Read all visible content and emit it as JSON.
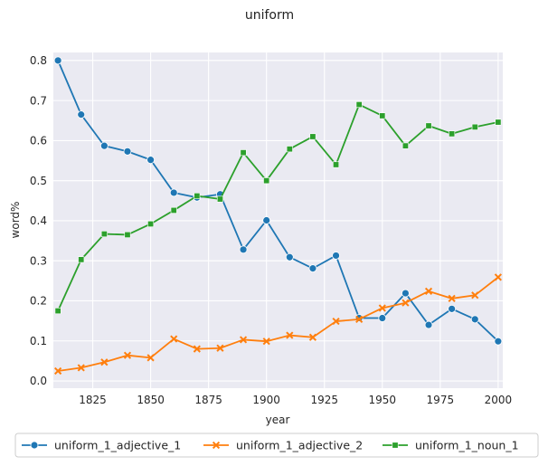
{
  "chart_data": {
    "type": "line",
    "title": "uniform",
    "xlabel": "year",
    "ylabel": "word%",
    "xlim": [
      1808,
      2002
    ],
    "ylim": [
      -0.018,
      0.82
    ],
    "xticks": [
      1825,
      1850,
      1875,
      1900,
      1925,
      1950,
      1975,
      2000
    ],
    "yticks": [
      0.0,
      0.1,
      0.2,
      0.3,
      0.4,
      0.5,
      0.6,
      0.7,
      0.8
    ],
    "ytick_labels": [
      "0.0",
      "0.1",
      "0.2",
      "0.3",
      "0.4",
      "0.5",
      "0.6",
      "0.7",
      "0.8"
    ],
    "grid": true,
    "background": "#eaeaf2",
    "legend_position": "bottom",
    "x": [
      1810,
      1820,
      1830,
      1840,
      1850,
      1860,
      1870,
      1880,
      1890,
      1900,
      1910,
      1920,
      1930,
      1940,
      1950,
      1960,
      1970,
      1980,
      1990,
      2000
    ],
    "series": [
      {
        "name": "uniform_1_adjective_1",
        "color": "#1f77b4",
        "marker": "circle",
        "values": [
          0.8,
          0.665,
          0.587,
          0.573,
          0.552,
          0.47,
          0.458,
          0.466,
          0.328,
          0.401,
          0.309,
          0.281,
          0.313,
          0.157,
          0.157,
          0.219,
          0.14,
          0.18,
          0.154,
          0.099
        ]
      },
      {
        "name": "uniform_1_adjective_2",
        "color": "#ff7f0e",
        "marker": "x",
        "values": [
          0.025,
          0.033,
          0.047,
          0.064,
          0.058,
          0.105,
          0.08,
          0.082,
          0.103,
          0.099,
          0.114,
          0.109,
          0.149,
          0.154,
          0.182,
          0.195,
          0.224,
          0.206,
          0.214,
          0.259
        ]
      },
      {
        "name": "uniform_1_noun_1",
        "color": "#2ca02c",
        "marker": "square",
        "values": [
          0.175,
          0.303,
          0.367,
          0.365,
          0.392,
          0.426,
          0.462,
          0.454,
          0.57,
          0.5,
          0.579,
          0.61,
          0.54,
          0.69,
          0.662,
          0.587,
          0.637,
          0.617,
          0.634,
          0.646
        ]
      }
    ]
  }
}
